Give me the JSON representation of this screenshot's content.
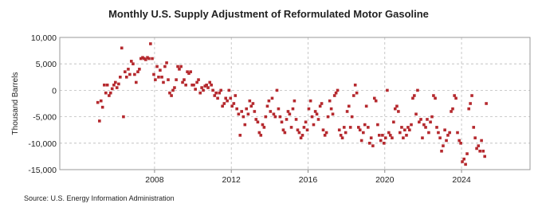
{
  "chart_data": {
    "type": "scatter",
    "title": "Monthly U.S. Supply Adjustment of Reformulated Motor Gasoline",
    "y_label": "Thousand Barrels",
    "source": "Source: U.S. Energy Information Administration",
    "color": "#b5292e",
    "grid": true,
    "xlim": [
      2003.06,
      2027.57
    ],
    "ylim": [
      -15000,
      10000
    ],
    "xticks": [
      2008,
      2012,
      2016,
      2020,
      2024
    ],
    "yticks": [
      {
        "value": -15000,
        "label": "-15,000"
      },
      {
        "value": -10000,
        "label": "-10,000"
      },
      {
        "value": -5000,
        "label": "-5,000"
      },
      0,
      {
        "value": 5000,
        "label": "5,000"
      },
      {
        "value": 10000,
        "label": "10,000"
      }
    ],
    "x": [
      2005.04,
      2005.13,
      2005.21,
      2005.29,
      2005.38,
      2005.46,
      2005.54,
      2005.63,
      2005.71,
      2005.79,
      2005.88,
      2005.96,
      2006.04,
      2006.13,
      2006.21,
      2006.29,
      2006.38,
      2006.46,
      2006.54,
      2006.63,
      2006.71,
      2006.79,
      2006.88,
      2006.96,
      2007.04,
      2007.13,
      2007.21,
      2007.29,
      2007.38,
      2007.46,
      2007.54,
      2007.63,
      2007.71,
      2007.79,
      2007.88,
      2007.96,
      2008.04,
      2008.13,
      2008.21,
      2008.29,
      2008.38,
      2008.46,
      2008.54,
      2008.63,
      2008.71,
      2008.79,
      2008.88,
      2008.96,
      2009.04,
      2009.13,
      2009.21,
      2009.29,
      2009.38,
      2009.46,
      2009.54,
      2009.63,
      2009.71,
      2009.79,
      2009.88,
      2009.96,
      2010.04,
      2010.13,
      2010.21,
      2010.29,
      2010.38,
      2010.46,
      2010.54,
      2010.63,
      2010.71,
      2010.79,
      2010.88,
      2010.96,
      2011.04,
      2011.13,
      2011.21,
      2011.29,
      2011.38,
      2011.46,
      2011.54,
      2011.63,
      2011.71,
      2011.79,
      2011.88,
      2011.96,
      2012.04,
      2012.13,
      2012.21,
      2012.29,
      2012.38,
      2012.46,
      2012.54,
      2012.63,
      2012.71,
      2012.79,
      2012.88,
      2012.96,
      2013.04,
      2013.13,
      2013.21,
      2013.29,
      2013.38,
      2013.46,
      2013.54,
      2013.63,
      2013.71,
      2013.79,
      2013.88,
      2013.96,
      2014.04,
      2014.13,
      2014.21,
      2014.29,
      2014.38,
      2014.46,
      2014.54,
      2014.63,
      2014.71,
      2014.79,
      2014.88,
      2014.96,
      2015.04,
      2015.13,
      2015.21,
      2015.29,
      2015.38,
      2015.46,
      2015.54,
      2015.63,
      2015.71,
      2015.79,
      2015.88,
      2015.96,
      2016.04,
      2016.13,
      2016.21,
      2016.29,
      2016.38,
      2016.46,
      2016.54,
      2016.63,
      2016.71,
      2016.79,
      2016.88,
      2016.96,
      2017.04,
      2017.13,
      2017.21,
      2017.29,
      2017.38,
      2017.46,
      2017.54,
      2017.63,
      2017.71,
      2017.79,
      2017.88,
      2017.96,
      2018.04,
      2018.13,
      2018.21,
      2018.29,
      2018.38,
      2018.46,
      2018.54,
      2018.63,
      2018.71,
      2018.79,
      2018.88,
      2018.96,
      2019.04,
      2019.13,
      2019.21,
      2019.29,
      2019.38,
      2019.46,
      2019.54,
      2019.63,
      2019.71,
      2019.79,
      2019.88,
      2019.96,
      2020.04,
      2020.13,
      2020.21,
      2020.29,
      2020.38,
      2020.46,
      2020.54,
      2020.63,
      2020.71,
      2020.79,
      2020.88,
      2020.96,
      2021.04,
      2021.13,
      2021.21,
      2021.29,
      2021.38,
      2021.46,
      2021.54,
      2021.63,
      2021.71,
      2021.79,
      2021.88,
      2021.96,
      2022.04,
      2022.13,
      2022.21,
      2022.29,
      2022.38,
      2022.46,
      2022.54,
      2022.63,
      2022.71,
      2022.79,
      2022.88,
      2022.96,
      2023.04,
      2023.13,
      2023.21,
      2023.29,
      2023.38,
      2023.46,
      2023.54,
      2023.63,
      2023.71,
      2023.79,
      2023.88,
      2023.96,
      2024.04,
      2024.13,
      2024.21,
      2024.29,
      2024.38,
      2024.46,
      2024.54,
      2024.63,
      2024.71,
      2024.79,
      2024.88,
      2024.96,
      2025.04,
      2025.13,
      2025.21,
      2025.29
    ],
    "values": [
      -2300,
      -5800,
      -2000,
      -3200,
      1000,
      -500,
      1000,
      -1000,
      -500,
      300,
      1000,
      1500,
      500,
      1200,
      2500,
      8000,
      -5000,
      3500,
      2500,
      4000,
      3000,
      5500,
      5000,
      3000,
      1500,
      3500,
      4000,
      6000,
      6200,
      6000,
      5800,
      6200,
      6000,
      8800,
      6000,
      3000,
      2000,
      4500,
      2500,
      3800,
      2500,
      1500,
      4500,
      5200,
      2000,
      -500,
      -1000,
      0,
      500,
      2000,
      4500,
      4000,
      4500,
      1500,
      2000,
      1000,
      3500,
      3200,
      3500,
      1000,
      1000,
      200,
      1500,
      2000,
      -500,
      500,
      0,
      800,
      1000,
      500,
      1500,
      1000,
      0,
      -1000,
      -500,
      -1500,
      -500,
      0,
      -3000,
      -2500,
      -1500,
      -2000,
      0,
      -1500,
      -3000,
      -2500,
      -1000,
      -3500,
      -4500,
      -8500,
      -4000,
      -5000,
      -6500,
      -3500,
      -4500,
      -2000,
      -3000,
      -2500,
      -4000,
      -5500,
      -6000,
      -8000,
      -8500,
      -6500,
      -7000,
      -5000,
      -3000,
      -2000,
      -4000,
      -1500,
      -4500,
      -5000,
      0,
      -3500,
      -5000,
      -6000,
      -7500,
      -8000,
      -5500,
      -4000,
      -4500,
      -7000,
      -3500,
      -2000,
      -5500,
      -7500,
      -8000,
      -9000,
      -8500,
      -7000,
      -6000,
      -7500,
      -3500,
      -2000,
      -5000,
      -6500,
      -4000,
      -4500,
      -5500,
      -3000,
      -2500,
      -7500,
      -8500,
      -8000,
      -5000,
      -2000,
      -3500,
      -4500,
      -1000,
      -500,
      0,
      -7500,
      -8500,
      -9000,
      -7000,
      -8000,
      -4000,
      -3000,
      -7000,
      -5000,
      -1000,
      1000,
      -500,
      -7000,
      -7500,
      -9500,
      -8000,
      -6500,
      -3000,
      -7000,
      -10000,
      -9000,
      -10500,
      -1500,
      -2000,
      -6500,
      -8500,
      -9500,
      -8500,
      -10000,
      -9000,
      0,
      -8000,
      -8500,
      -9000,
      -6000,
      -3500,
      -3000,
      -4000,
      -8000,
      -7000,
      -9000,
      -7500,
      -8500,
      -7000,
      -7500,
      -6500,
      -1500,
      -1000,
      -4500,
      0,
      -6000,
      -5500,
      -9000,
      -6500,
      -7000,
      -5500,
      -8000,
      -6000,
      -5000,
      -1000,
      -1500,
      -7000,
      -8000,
      -9000,
      -11500,
      -10500,
      -7500,
      -9500,
      -8500,
      -8000,
      -4000,
      -3500,
      -1000,
      -1500,
      -8000,
      -9500,
      -10000,
      -13500,
      -13000,
      -14000,
      -12000,
      -3500,
      -2500,
      -1000,
      -7000,
      -9000,
      -11000,
      -10500,
      -11500,
      -9500,
      -11500,
      -12500,
      -2500
    ]
  }
}
